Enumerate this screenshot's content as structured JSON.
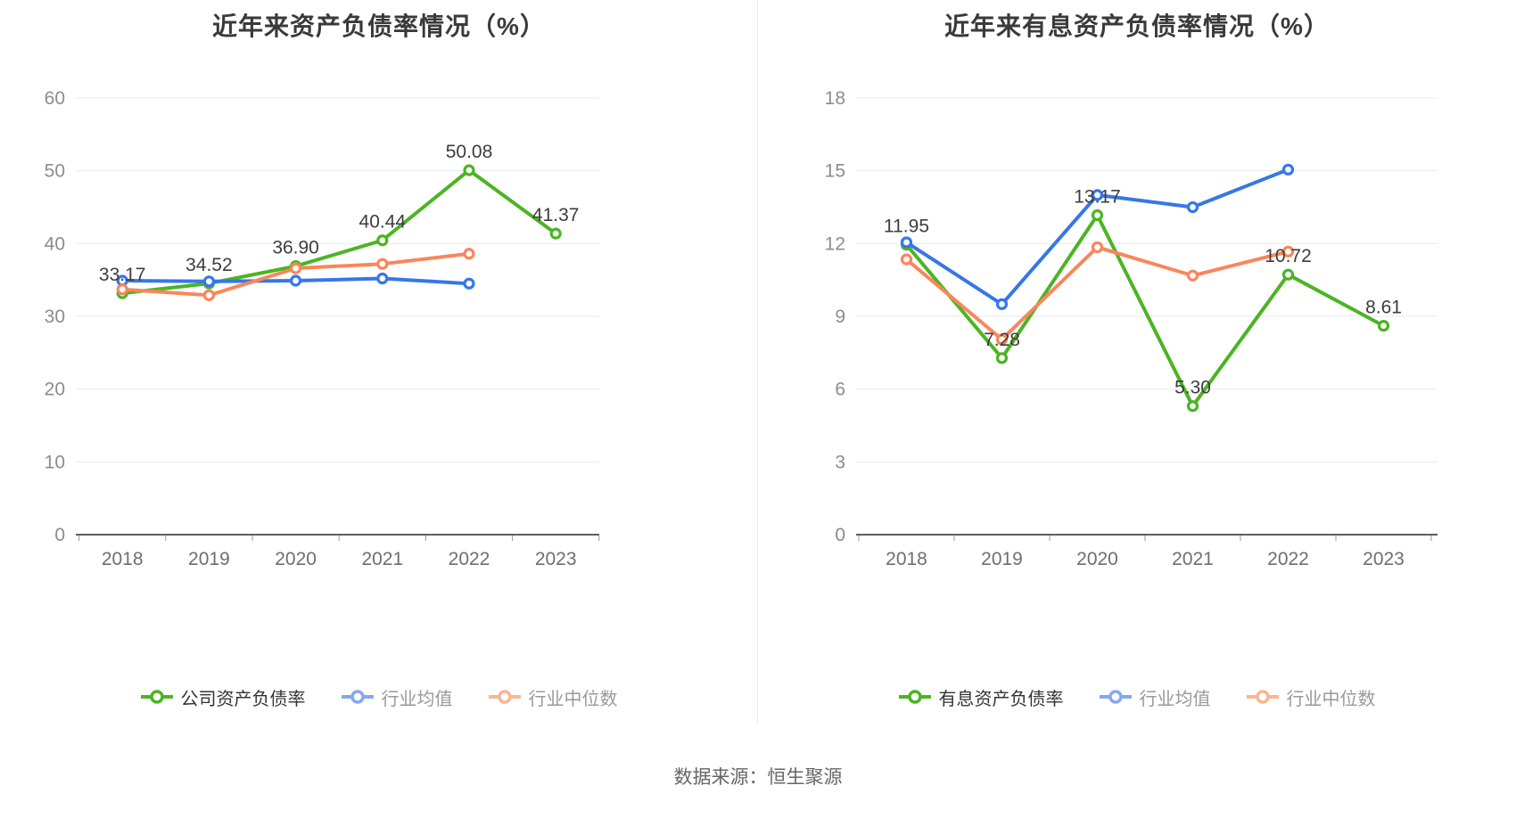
{
  "page": {
    "source_label": "数据来源：恒生聚源",
    "background": "#ffffff",
    "divider_color": "#ececec"
  },
  "colors": {
    "company_green": "#4CB422",
    "industry_blue": "#3677E8",
    "industry_orange": "#F9865B",
    "legend_blue_light": "#84A8EF",
    "legend_orange_light": "#F8B695",
    "grid_line": "#E7EAF3",
    "axis_line": "#5E5E5E",
    "tick_text": "#8C8C8C",
    "label_text": "#3D3D3D"
  },
  "chart_data": [
    {
      "type": "line",
      "title": "近年来资产负债率情况（%）",
      "categories": [
        "2018",
        "2019",
        "2020",
        "2021",
        "2022",
        "2023"
      ],
      "ylim": [
        0,
        60
      ],
      "ytick_step": 10,
      "yticks": [
        0,
        10,
        20,
        30,
        40,
        50,
        60
      ],
      "grid": true,
      "legend_position": "bottom",
      "series": [
        {
          "name": "公司资产负债率",
          "color": "#4CB422",
          "legend_color": "#4CB422",
          "legend_text_color": "#333333",
          "values": [
            33.17,
            34.52,
            36.9,
            40.44,
            50.08,
            41.37
          ],
          "point_labels": [
            "33.17",
            "34.52",
            "36.90",
            "40.44",
            "50.08",
            "41.37"
          ]
        },
        {
          "name": "行业均值",
          "color": "#3677E8",
          "legend_color": "#84A8EF",
          "legend_text_color": "#999999",
          "values": [
            34.9,
            34.8,
            34.9,
            35.2,
            34.5,
            null
          ],
          "point_labels": []
        },
        {
          "name": "行业中位数",
          "color": "#F9865B",
          "legend_color": "#F8B695",
          "legend_text_color": "#999999",
          "values": [
            33.7,
            32.9,
            36.6,
            37.2,
            38.6,
            null
          ],
          "point_labels": []
        }
      ]
    },
    {
      "type": "line",
      "title": "近年来有息资产负债率情况（%）",
      "categories": [
        "2018",
        "2019",
        "2020",
        "2021",
        "2022",
        "2023"
      ],
      "ylim": [
        0,
        18
      ],
      "ytick_step": 3,
      "yticks": [
        0,
        3,
        6,
        9,
        12,
        15,
        18
      ],
      "grid": true,
      "legend_position": "bottom",
      "series": [
        {
          "name": "有息资产负债率",
          "color": "#4CB422",
          "legend_color": "#4CB422",
          "legend_text_color": "#333333",
          "values": [
            11.95,
            7.28,
            13.17,
            5.3,
            10.72,
            8.61
          ],
          "point_labels": [
            "11.95",
            "7.28",
            "13.17",
            "5.30",
            "10.72",
            "8.61"
          ]
        },
        {
          "name": "行业均值",
          "color": "#3677E8",
          "legend_color": "#84A8EF",
          "legend_text_color": "#999999",
          "values": [
            12.05,
            9.5,
            14.0,
            13.5,
            15.05,
            null
          ],
          "point_labels": []
        },
        {
          "name": "行业中位数",
          "color": "#F9865B",
          "legend_color": "#F8B695",
          "legend_text_color": "#999999",
          "values": [
            11.35,
            8.05,
            11.85,
            10.68,
            11.67,
            null
          ],
          "point_labels": []
        }
      ]
    }
  ]
}
